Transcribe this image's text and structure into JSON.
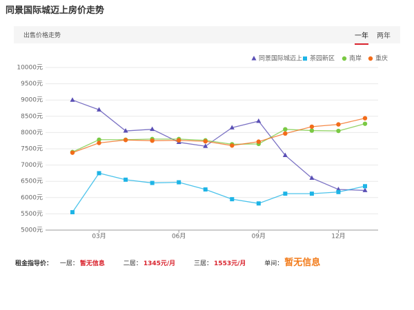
{
  "header": {
    "title": "同景国际城迈上房价走势",
    "subtitle": "出售价格走势",
    "tabs": [
      "一年",
      "两年"
    ]
  },
  "chart_data": {
    "type": "line",
    "categories": [
      null,
      "03月",
      null,
      null,
      "06月",
      null,
      null,
      "09月",
      null,
      null,
      "12月",
      null
    ],
    "series": [
      {
        "name": "同景国际城迈上",
        "color": "#5a4fb5",
        "marker": "triangle",
        "values": [
          9000,
          8700,
          8050,
          8100,
          7700,
          7580,
          8150,
          8350,
          7300,
          6600,
          6250,
          6220
        ]
      },
      {
        "name": "茶园新区",
        "color": "#1eb4e6",
        "marker": "square",
        "values": [
          5550,
          6750,
          6550,
          6450,
          6470,
          6250,
          5950,
          5820,
          6120,
          6120,
          6170,
          6350
        ]
      },
      {
        "name": "南岸",
        "color": "#7ac943",
        "marker": "circle",
        "values": [
          7400,
          7780,
          7780,
          7800,
          7800,
          7760,
          7640,
          7650,
          8100,
          8060,
          8050,
          8270
        ]
      },
      {
        "name": "重庆",
        "color": "#f26c1a",
        "marker": "circle",
        "values": [
          7380,
          7680,
          7770,
          7750,
          7760,
          7730,
          7600,
          7720,
          7970,
          8180,
          8250,
          8440
        ]
      }
    ],
    "ylim": [
      5000,
      10000
    ],
    "yticks": [
      {
        "value": 5000,
        "label": "5000元"
      },
      {
        "value": 5500,
        "label": "5500元"
      },
      {
        "value": 6000,
        "label": "6000元"
      },
      {
        "value": 6500,
        "label": "6500元"
      },
      {
        "value": 7000,
        "label": "7000元"
      },
      {
        "value": 7500,
        "label": "7500元"
      },
      {
        "value": 8000,
        "label": "8000元"
      },
      {
        "value": 8500,
        "label": "8500元"
      },
      {
        "value": 9000,
        "label": "9000元"
      },
      {
        "value": 9500,
        "label": "9500元"
      },
      {
        "value": 10000,
        "label": "10000元"
      }
    ],
    "grid": true,
    "legend": "top-right"
  },
  "rent": {
    "label": "租金指导价：",
    "items": [
      {
        "name": "一居：",
        "value": "暂无信息"
      },
      {
        "name": "二居：",
        "value": "1345元/月"
      },
      {
        "name": "三居：",
        "value": "1553元/月"
      },
      {
        "name": "单间：",
        "value": "暂无信息"
      }
    ]
  }
}
